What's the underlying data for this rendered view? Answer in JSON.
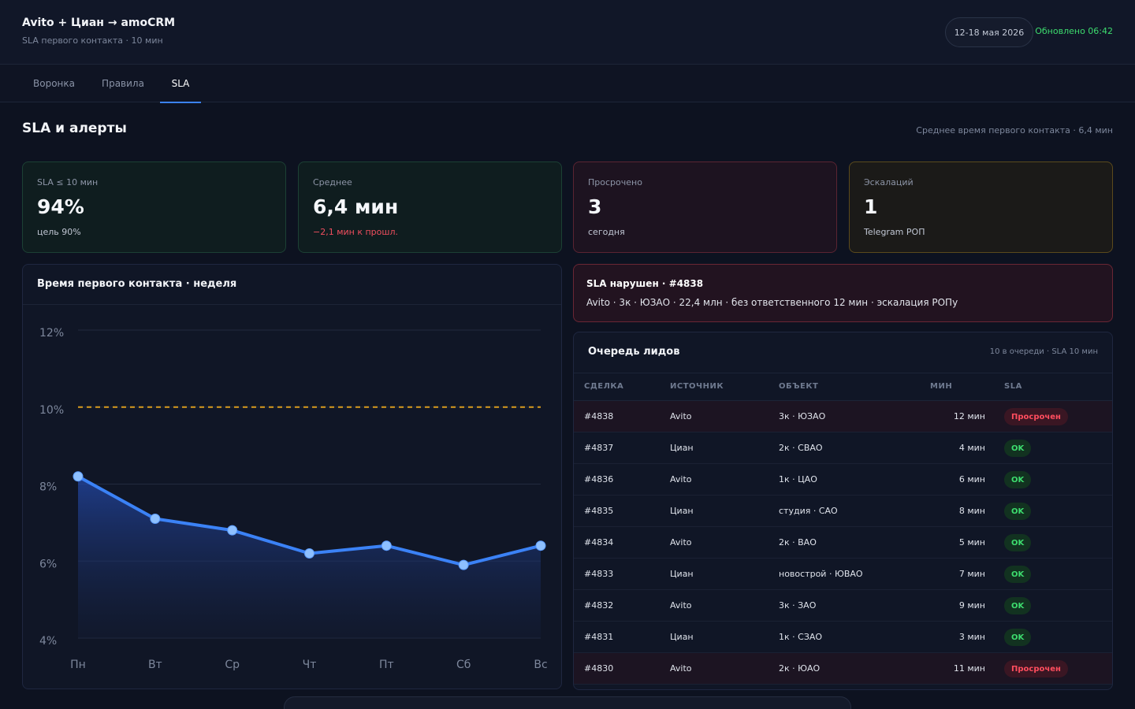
{
  "header": {
    "title": "Avito + Циан → amoCRM",
    "subtitle": "SLA первого контакта · 10 мин",
    "date_range": "12-18 мая 2026",
    "updated": "Обновлено 06:42"
  },
  "tabs": [
    {
      "label": "Воронка"
    },
    {
      "label": "Правила"
    },
    {
      "label": "SLA",
      "active": true
    }
  ],
  "section": {
    "title": "SLA и алерты",
    "note": "Среднее время первого контакта · 6,4 мин"
  },
  "kpis": [
    {
      "label": "SLA ≤ 10 мин",
      "value": "94%",
      "sub": "цель 90%",
      "tone": "green"
    },
    {
      "label": "Среднее",
      "value": "6,4 мин",
      "sub": "−2,1 мин к прошл.",
      "tone": "green"
    },
    {
      "label": "Просрочено",
      "value": "3",
      "sub": "сегодня",
      "tone": "red"
    },
    {
      "label": "Эскалаций",
      "value": "1",
      "sub": "Telegram РОП",
      "tone": "yellow"
    }
  ],
  "chart_data": {
    "type": "line",
    "title": "Время первого контакта · неделя",
    "categories": [
      "Пн",
      "Вт",
      "Ср",
      "Чт",
      "Пт",
      "Сб",
      "Вс"
    ],
    "series": [
      {
        "values": [
          8.2,
          7.1,
          6.8,
          6.2,
          6.4,
          5.9,
          6.4
        ],
        "color": "#3b82f6"
      }
    ],
    "threshold": {
      "value": 10,
      "color": "#d99b1e",
      "style": "dashed"
    },
    "y_ticks": [
      "4%",
      "6%",
      "8%",
      "10%",
      "12%"
    ],
    "ylim": [
      4,
      12
    ],
    "grid": true,
    "area_fill": true
  },
  "alert": {
    "title": "SLA нарушен · #4838",
    "text": "Avito · 3к · ЮЗАО · 22,4 млн · без ответственного 12 мин · эскалация РОПу"
  },
  "queue": {
    "title": "Очередь лидов",
    "note": "10 в очереди · SLA 10 мин",
    "columns": [
      "СДЕЛКА",
      "ИСТОЧНИК",
      "ОБЪЕКТ",
      "МИН",
      "SLA"
    ],
    "rows": [
      {
        "deal": "#4838",
        "source": "Avito",
        "object": "3к · ЮЗАО",
        "min": "12 мин",
        "sla": "Просрочен",
        "late": true
      },
      {
        "deal": "#4837",
        "source": "Циан",
        "object": "2к · СВАО",
        "min": "4 мин",
        "sla": "OK",
        "late": false
      },
      {
        "deal": "#4836",
        "source": "Avito",
        "object": "1к · ЦАО",
        "min": "6 мин",
        "sla": "OK",
        "late": false
      },
      {
        "deal": "#4835",
        "source": "Циан",
        "object": "студия · САО",
        "min": "8 мин",
        "sla": "OK",
        "late": false
      },
      {
        "deal": "#4834",
        "source": "Avito",
        "object": "2к · ВАО",
        "min": "5 мин",
        "sla": "OK",
        "late": false
      },
      {
        "deal": "#4833",
        "source": "Циан",
        "object": "новострой · ЮВАО",
        "min": "7 мин",
        "sla": "OK",
        "late": false
      },
      {
        "deal": "#4832",
        "source": "Avito",
        "object": "3к · ЗАО",
        "min": "9 мин",
        "sla": "OK",
        "late": false
      },
      {
        "deal": "#4831",
        "source": "Циан",
        "object": "1к · СЗАО",
        "min": "3 мин",
        "sla": "OK",
        "late": false
      },
      {
        "deal": "#4830",
        "source": "Avito",
        "object": "2к · ЮАО",
        "min": "11 мин",
        "sla": "Просрочен",
        "late": true
      }
    ]
  }
}
